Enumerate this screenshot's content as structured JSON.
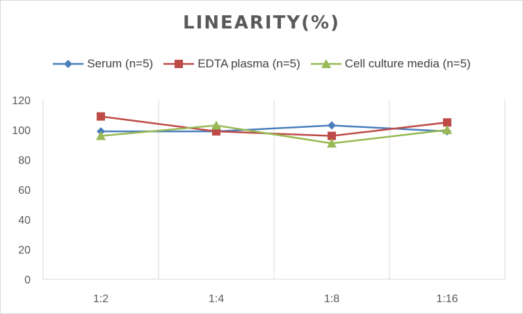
{
  "chart_data": {
    "type": "line",
    "title": "LINEARITY(%)",
    "xlabel": "",
    "ylabel": "",
    "categories": [
      "1:2",
      "1:4",
      "1:8",
      "1:16"
    ],
    "ylim": [
      0,
      120
    ],
    "yticks": [
      0,
      20,
      40,
      60,
      80,
      100,
      120
    ],
    "grid": "vertical category gridlines",
    "legend_position": "top",
    "series": [
      {
        "name": "Serum (n=5)",
        "values": [
          99,
          99,
          103,
          99
        ],
        "color": "#4a7ebb",
        "marker": "diamond"
      },
      {
        "name": "EDTA plasma (n=5)",
        "values": [
          109,
          99,
          96,
          105
        ],
        "color": "#be4b48",
        "marker": "square"
      },
      {
        "name": "Cell culture media (n=5)",
        "values": [
          96,
          103,
          91,
          100
        ],
        "color": "#98b954",
        "marker": "triangle"
      }
    ]
  }
}
